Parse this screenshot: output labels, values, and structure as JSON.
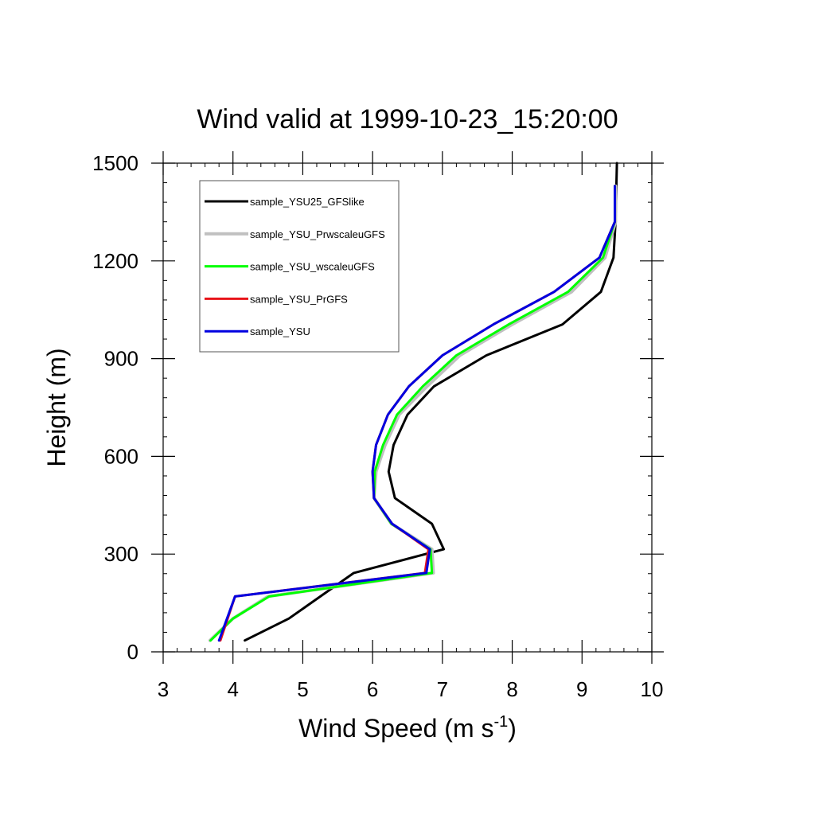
{
  "chart_data": {
    "type": "line",
    "title": "Wind valid at 1999-10-23_15:20:00",
    "xlabel": "Wind Speed (m s",
    "xlabel_superscript": "-1",
    "xlabel_suffix": ")",
    "ylabel": "Height (m)",
    "xlim": [
      3,
      10
    ],
    "ylim": [
      0,
      1500
    ],
    "xticks": [
      "3",
      "4",
      "5",
      "6",
      "7",
      "8",
      "9",
      "10"
    ],
    "yticks": [
      "0",
      "300",
      "600",
      "900",
      "1200",
      "1500"
    ],
    "legend": "top-left",
    "series": [
      {
        "name": "sample_YSU25_GFSlike",
        "color": "#000000",
        "points": [
          [
            4.17,
            35
          ],
          [
            4.8,
            102
          ],
          [
            5.73,
            242
          ],
          [
            7.02,
            315
          ],
          [
            6.85,
            393
          ],
          [
            6.32,
            472
          ],
          [
            6.23,
            553
          ],
          [
            6.3,
            635
          ],
          [
            6.5,
            728
          ],
          [
            6.88,
            815
          ],
          [
            7.63,
            910
          ],
          [
            8.72,
            1005
          ],
          [
            9.27,
            1105
          ],
          [
            9.45,
            1210
          ],
          [
            9.48,
            1320
          ],
          [
            9.5,
            1500
          ]
        ]
      },
      {
        "name": "sample_YSU_PrwscaleuGFS",
        "color": "#c0c0c0",
        "points": [
          [
            3.67,
            35
          ],
          [
            4.0,
            102
          ],
          [
            4.5,
            170
          ],
          [
            6.87,
            242
          ],
          [
            6.85,
            315
          ],
          [
            6.27,
            393
          ],
          [
            6.02,
            472
          ],
          [
            6.05,
            553
          ],
          [
            6.18,
            635
          ],
          [
            6.38,
            728
          ],
          [
            6.78,
            815
          ],
          [
            7.25,
            910
          ],
          [
            8.0,
            1005
          ],
          [
            8.85,
            1105
          ],
          [
            9.33,
            1210
          ],
          [
            9.48,
            1320
          ],
          [
            9.48,
            1430
          ]
        ]
      },
      {
        "name": "sample_YSU_wscaleuGFS",
        "color": "#00ff00",
        "points": [
          [
            3.68,
            35
          ],
          [
            4.0,
            102
          ],
          [
            4.52,
            170
          ],
          [
            6.85,
            242
          ],
          [
            6.83,
            315
          ],
          [
            6.27,
            393
          ],
          [
            6.02,
            472
          ],
          [
            6.03,
            553
          ],
          [
            6.15,
            635
          ],
          [
            6.35,
            728
          ],
          [
            6.72,
            815
          ],
          [
            7.2,
            910
          ],
          [
            7.95,
            1005
          ],
          [
            8.8,
            1105
          ],
          [
            9.3,
            1210
          ],
          [
            9.47,
            1320
          ],
          [
            9.47,
            1430
          ]
        ]
      },
      {
        "name": "sample_YSU_PrGFS",
        "color": "#e8141a",
        "points": [
          [
            3.82,
            35
          ],
          [
            4.03,
            170
          ],
          [
            6.75,
            242
          ],
          [
            6.8,
            315
          ],
          [
            6.28,
            393
          ],
          [
            6.02,
            472
          ],
          [
            6.0,
            553
          ],
          [
            6.05,
            635
          ],
          [
            6.22,
            728
          ],
          [
            6.52,
            815
          ],
          [
            7.0,
            910
          ],
          [
            7.73,
            1005
          ],
          [
            8.6,
            1105
          ],
          [
            9.25,
            1210
          ],
          [
            9.47,
            1320
          ],
          [
            9.47,
            1430
          ]
        ]
      },
      {
        "name": "sample_YSU",
        "color": "#0000e0",
        "points": [
          [
            3.8,
            35
          ],
          [
            4.03,
            170
          ],
          [
            6.77,
            242
          ],
          [
            6.82,
            315
          ],
          [
            6.28,
            393
          ],
          [
            6.02,
            472
          ],
          [
            6.0,
            553
          ],
          [
            6.05,
            635
          ],
          [
            6.22,
            728
          ],
          [
            6.52,
            815
          ],
          [
            7.0,
            910
          ],
          [
            7.73,
            1005
          ],
          [
            8.6,
            1105
          ],
          [
            9.25,
            1210
          ],
          [
            9.47,
            1320
          ],
          [
            9.47,
            1430
          ]
        ]
      }
    ]
  }
}
